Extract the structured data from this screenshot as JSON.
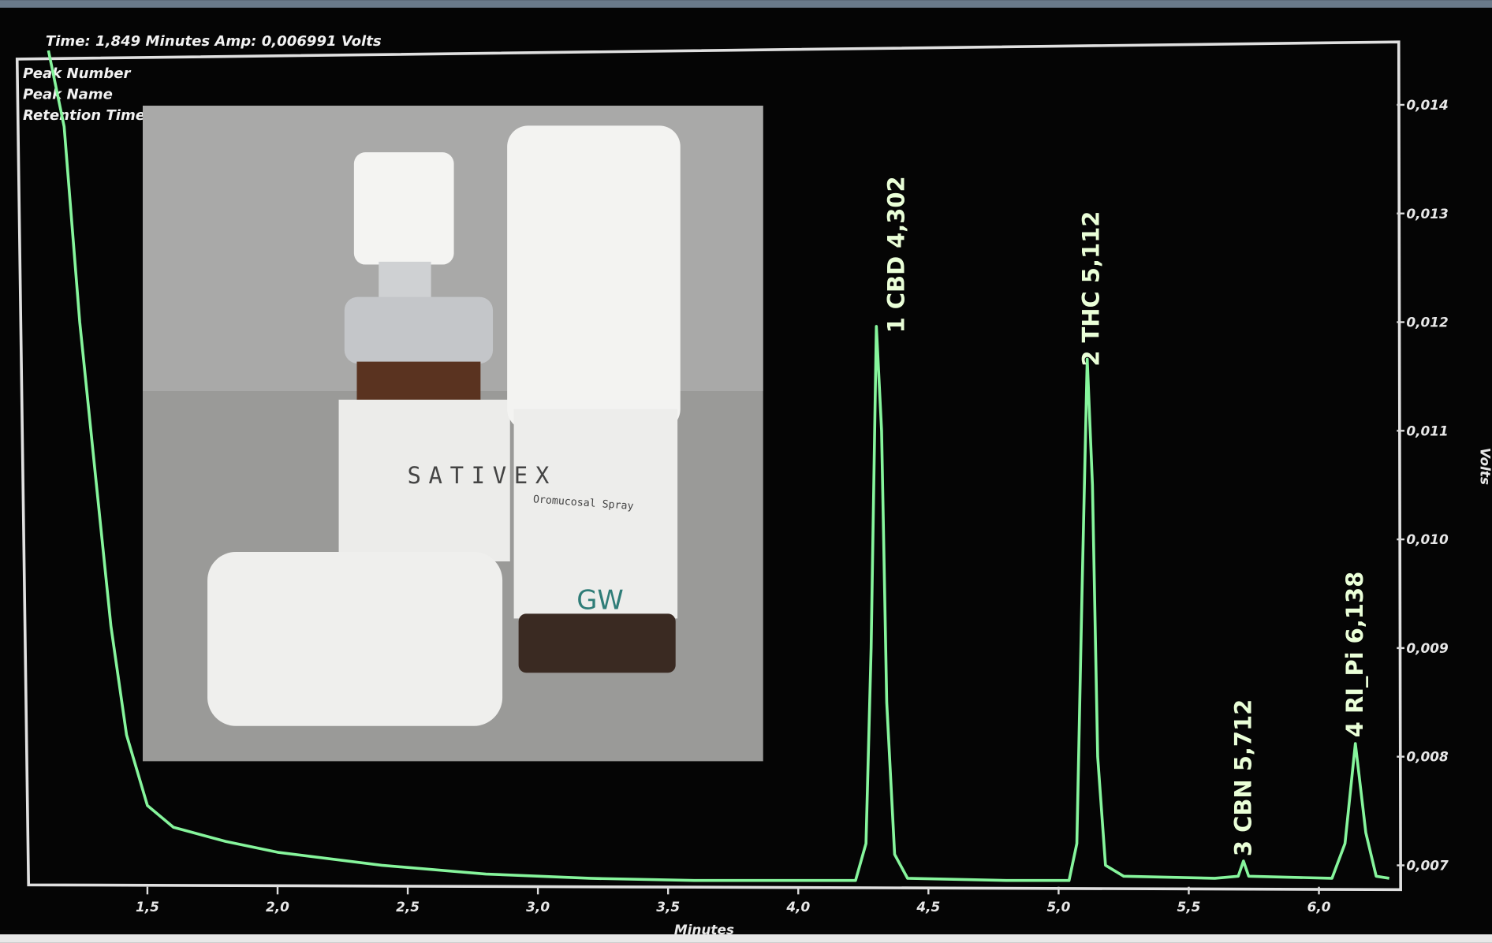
{
  "chart_data": {
    "type": "line",
    "header": "Time:  1,849 Minutes   Amp:  0,006991 Volts",
    "legend_texts": [
      "Peak Number",
      "Peak Name",
      "Retention Time"
    ],
    "x_label": "Minutes",
    "y_label": "Volts",
    "x": [
      1.12,
      1.18,
      1.24,
      1.3,
      1.36,
      1.42,
      1.5,
      1.6,
      1.8,
      2.0,
      2.4,
      2.8,
      3.2,
      3.6,
      4.0,
      4.22,
      4.26,
      4.28,
      4.3,
      4.32,
      4.34,
      4.37,
      4.42,
      4.8,
      5.04,
      5.07,
      5.09,
      5.11,
      5.13,
      5.15,
      5.18,
      5.25,
      5.6,
      5.69,
      5.71,
      5.73,
      6.05,
      6.1,
      6.14,
      6.18,
      6.22,
      6.27
    ],
    "series": [
      {
        "color": "#86f59c",
        "values": [
          0.0145,
          0.0138,
          0.012,
          0.0106,
          0.0092,
          0.0082,
          0.00755,
          0.00735,
          0.00722,
          0.00712,
          0.007,
          0.00692,
          0.00688,
          0.00686,
          0.00686,
          0.00686,
          0.0072,
          0.009,
          0.01196,
          0.011,
          0.0085,
          0.0071,
          0.00688,
          0.00686,
          0.00686,
          0.0072,
          0.0095,
          0.01166,
          0.0105,
          0.008,
          0.007,
          0.0069,
          0.00688,
          0.0069,
          0.00704,
          0.0069,
          0.00688,
          0.0072,
          0.00812,
          0.0073,
          0.0069,
          0.00688
        ]
      }
    ],
    "peak_labels": [
      "1  CBD  4,302",
      "2  THC  5,112",
      "3  CBN  5,712",
      "4  RI_Pi  6,138"
    ],
    "xlim": [
      1.08,
      6.27
    ],
    "ylim": [
      0.00682,
      0.01457
    ],
    "xticks": [
      {
        "value": 1.5,
        "label": "1,5"
      },
      {
        "value": 2.0,
        "label": "2,0"
      },
      {
        "value": 2.5,
        "label": "2,5"
      },
      {
        "value": 3.0,
        "label": "3,0"
      },
      {
        "value": 3.5,
        "label": "3,5"
      },
      {
        "value": 4.0,
        "label": "4,0"
      },
      {
        "value": 4.5,
        "label": "4,5"
      },
      {
        "value": 5.0,
        "label": "5,0"
      },
      {
        "value": 5.5,
        "label": "5,5"
      },
      {
        "value": 6.0,
        "label": "6,0"
      }
    ],
    "yticks": [
      {
        "value": 0.014,
        "label": "0,014"
      },
      {
        "value": 0.013,
        "label": "0,013"
      },
      {
        "value": 0.012,
        "label": "0,012"
      },
      {
        "value": 0.011,
        "label": "0,011"
      },
      {
        "value": 0.01,
        "label": "0,010"
      },
      {
        "value": 0.009,
        "label": "0,009"
      },
      {
        "value": 0.008,
        "label": "0,008"
      },
      {
        "value": 0.007,
        "label": "0,007"
      }
    ],
    "inset_texts": [
      "SATIVEX",
      "Oromucosal Spray",
      "GW"
    ]
  }
}
